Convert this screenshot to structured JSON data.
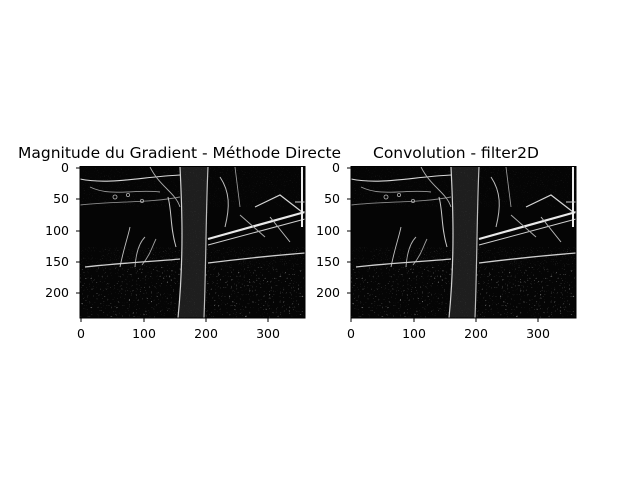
{
  "figure": {
    "panels": [
      {
        "title": "Magnitude du Gradient - Méthode Directe",
        "yticks": [
          "0",
          "50",
          "100",
          "150",
          "200"
        ],
        "xticks": [
          "0",
          "100",
          "200",
          "300"
        ],
        "image_description_name": "gradient-magnitude-image"
      },
      {
        "title": "Convolution - filter2D",
        "yticks": [
          "0",
          "50",
          "100",
          "150",
          "200"
        ],
        "xticks": [
          "0",
          "100",
          "200",
          "300"
        ],
        "image_description_name": "filter2d-convolution-image"
      }
    ]
  }
}
